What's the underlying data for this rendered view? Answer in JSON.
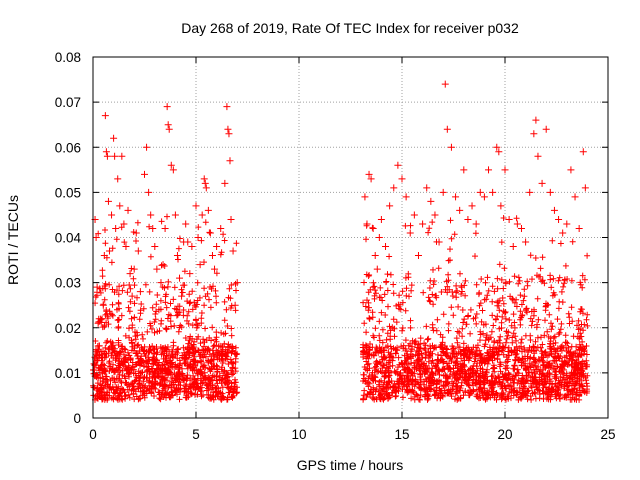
{
  "chart_data": {
    "type": "scatter",
    "title": "Day 268 of 2019, Rate Of TEC Index for receiver p032",
    "xlabel": "GPS time / hours",
    "ylabel": "ROTI / TECUs",
    "xlim": [
      0,
      25
    ],
    "ylim": [
      0,
      0.08
    ],
    "x_ticks": [
      0,
      5,
      10,
      15,
      20,
      25
    ],
    "y_ticks": [
      0,
      0.01,
      0.02,
      0.03,
      0.04,
      0.05,
      0.06,
      0.07,
      0.08
    ],
    "x_tick_labels": [
      "0",
      "5",
      "10",
      "15",
      "20",
      "25"
    ],
    "y_tick_labels": [
      "0",
      "0.01",
      "0.02",
      "0.03",
      "0.04",
      "0.05",
      "0.06",
      "0.07",
      "0.08"
    ],
    "grid": true,
    "marker": "plus",
    "marker_color": "#ff0000",
    "data_gap_hours": [
      7.0,
      13.1
    ],
    "series": [
      {
        "name": "ROTI",
        "points": [
          [
            0.05,
            0.012
          ],
          [
            0.1,
            0.044
          ],
          [
            0.15,
            0.04
          ],
          [
            0.2,
            0.029
          ],
          [
            0.25,
            0.021
          ],
          [
            0.3,
            0.016
          ],
          [
            0.35,
            0.009
          ],
          [
            0.4,
            0.014
          ],
          [
            0.5,
            0.025
          ],
          [
            0.55,
            0.036
          ],
          [
            0.6,
            0.067
          ],
          [
            0.65,
            0.059
          ],
          [
            0.7,
            0.058
          ],
          [
            0.75,
            0.048
          ],
          [
            0.8,
            0.037
          ],
          [
            0.9,
            0.045
          ],
          [
            1.0,
            0.062
          ],
          [
            1.05,
            0.058
          ],
          [
            1.1,
            0.042
          ],
          [
            1.2,
            0.053
          ],
          [
            1.3,
            0.047
          ],
          [
            1.4,
            0.058
          ],
          [
            1.5,
            0.043
          ],
          [
            1.6,
            0.038
          ],
          [
            1.7,
            0.046
          ],
          [
            1.8,
            0.032
          ],
          [
            1.9,
            0.027
          ],
          [
            2.0,
            0.033
          ],
          [
            2.1,
            0.041
          ],
          [
            2.2,
            0.037
          ],
          [
            2.3,
            0.028
          ],
          [
            2.5,
            0.054
          ],
          [
            2.6,
            0.06
          ],
          [
            2.7,
            0.05
          ],
          [
            2.8,
            0.045
          ],
          [
            2.9,
            0.042
          ],
          [
            3.0,
            0.038
          ],
          [
            3.1,
            0.033
          ],
          [
            3.2,
            0.024
          ],
          [
            3.3,
            0.03
          ],
          [
            3.4,
            0.034
          ],
          [
            3.5,
            0.042
          ],
          [
            3.6,
            0.069
          ],
          [
            3.65,
            0.065
          ],
          [
            3.7,
            0.064
          ],
          [
            3.8,
            0.056
          ],
          [
            3.9,
            0.055
          ],
          [
            4.0,
            0.045
          ],
          [
            4.1,
            0.036
          ],
          [
            4.2,
            0.031
          ],
          [
            4.3,
            0.027
          ],
          [
            4.4,
            0.039
          ],
          [
            4.5,
            0.043
          ],
          [
            4.6,
            0.039
          ],
          [
            4.7,
            0.032
          ],
          [
            4.8,
            0.038
          ],
          [
            5.0,
            0.047
          ],
          [
            5.1,
            0.04
          ],
          [
            5.2,
            0.034
          ],
          [
            5.3,
            0.045
          ],
          [
            5.4,
            0.053
          ],
          [
            5.45,
            0.052
          ],
          [
            5.5,
            0.051
          ],
          [
            5.6,
            0.046
          ],
          [
            5.7,
            0.041
          ],
          [
            5.8,
            0.036
          ],
          [
            5.9,
            0.033
          ],
          [
            6.0,
            0.038
          ],
          [
            6.2,
            0.042
          ],
          [
            6.4,
            0.052
          ],
          [
            6.5,
            0.069
          ],
          [
            6.55,
            0.064
          ],
          [
            6.6,
            0.063
          ],
          [
            6.65,
            0.057
          ],
          [
            6.7,
            0.044
          ],
          [
            6.8,
            0.037
          ],
          [
            6.9,
            0.025
          ],
          [
            7.0,
            0.03
          ],
          [
            13.2,
            0.049
          ],
          [
            13.3,
            0.043
          ],
          [
            13.4,
            0.054
          ],
          [
            13.5,
            0.053
          ],
          [
            13.6,
            0.042
          ],
          [
            13.7,
            0.036
          ],
          [
            13.8,
            0.033
          ],
          [
            13.9,
            0.04
          ],
          [
            14.0,
            0.044
          ],
          [
            14.2,
            0.038
          ],
          [
            14.4,
            0.047
          ],
          [
            14.6,
            0.051
          ],
          [
            14.8,
            0.056
          ],
          [
            15.0,
            0.053
          ],
          [
            15.2,
            0.049
          ],
          [
            15.4,
            0.041
          ],
          [
            15.6,
            0.045
          ],
          [
            15.8,
            0.036
          ],
          [
            16.0,
            0.043
          ],
          [
            16.2,
            0.051
          ],
          [
            16.4,
            0.048
          ],
          [
            16.6,
            0.045
          ],
          [
            16.8,
            0.039
          ],
          [
            17.0,
            0.05
          ],
          [
            17.1,
            0.074
          ],
          [
            17.2,
            0.064
          ],
          [
            17.4,
            0.06
          ],
          [
            17.6,
            0.049
          ],
          [
            17.8,
            0.046
          ],
          [
            18.0,
            0.055
          ],
          [
            18.2,
            0.044
          ],
          [
            18.4,
            0.047
          ],
          [
            18.6,
            0.043
          ],
          [
            18.8,
            0.05
          ],
          [
            19.0,
            0.049
          ],
          [
            19.2,
            0.055
          ],
          [
            19.4,
            0.05
          ],
          [
            19.6,
            0.06
          ],
          [
            19.7,
            0.059
          ],
          [
            19.8,
            0.047
          ],
          [
            20.0,
            0.055
          ],
          [
            20.2,
            0.044
          ],
          [
            20.4,
            0.038
          ],
          [
            20.6,
            0.043
          ],
          [
            20.8,
            0.042
          ],
          [
            21.0,
            0.039
          ],
          [
            21.2,
            0.05
          ],
          [
            21.4,
            0.063
          ],
          [
            21.5,
            0.066
          ],
          [
            21.6,
            0.058
          ],
          [
            21.8,
            0.052
          ],
          [
            22.0,
            0.064
          ],
          [
            22.2,
            0.05
          ],
          [
            22.4,
            0.046
          ],
          [
            22.6,
            0.044
          ],
          [
            22.8,
            0.041
          ],
          [
            23.0,
            0.043
          ],
          [
            23.2,
            0.055
          ],
          [
            23.4,
            0.049
          ],
          [
            23.6,
            0.042
          ],
          [
            23.8,
            0.059
          ],
          [
            23.9,
            0.051
          ]
        ]
      }
    ]
  }
}
